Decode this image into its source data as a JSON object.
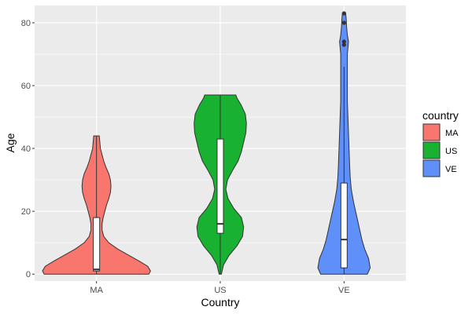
{
  "chart_data": {
    "type": "violin",
    "xlabel": "Country",
    "ylabel": "Age",
    "ylim": [
      -2.2,
      85.5
    ],
    "yticks": [
      0,
      20,
      40,
      60,
      80
    ],
    "categories": [
      "MA",
      "US",
      "VE"
    ],
    "legend": {
      "title": "country",
      "position": "right"
    },
    "grid": true,
    "colors": {
      "MA": "#f8766d",
      "US": "#19b131",
      "VE": "#5f8ff9"
    },
    "series": [
      {
        "name": "MA",
        "min": 0,
        "max": 44,
        "box": {
          "q1": 1,
          "median": 1.5,
          "q3": 18,
          "whisker_low": 0,
          "whisker_high": 44
        },
        "outliers": [],
        "density": [
          [
            0,
            0.94
          ],
          [
            1,
            0.97
          ],
          [
            2.5,
            0.92
          ],
          [
            4,
            0.78
          ],
          [
            6,
            0.58
          ],
          [
            8,
            0.38
          ],
          [
            10,
            0.22
          ],
          [
            12,
            0.13
          ],
          [
            14,
            0.1
          ],
          [
            16,
            0.1
          ],
          [
            18,
            0.12
          ],
          [
            20,
            0.15
          ],
          [
            22,
            0.18
          ],
          [
            24,
            0.22
          ],
          [
            26,
            0.25
          ],
          [
            28,
            0.26
          ],
          [
            30,
            0.25
          ],
          [
            32,
            0.22
          ],
          [
            34,
            0.17
          ],
          [
            36,
            0.13
          ],
          [
            38,
            0.1
          ],
          [
            40,
            0.07
          ],
          [
            42,
            0.06
          ],
          [
            44,
            0.05
          ]
        ]
      },
      {
        "name": "US",
        "min": 0,
        "max": 57,
        "box": {
          "q1": 13,
          "median": 16,
          "q3": 43,
          "whisker_low": 0,
          "whisker_high": 57
        },
        "outliers": [],
        "density": [
          [
            0,
            0.02
          ],
          [
            3,
            0.06
          ],
          [
            6,
            0.16
          ],
          [
            9,
            0.3
          ],
          [
            12,
            0.4
          ],
          [
            15,
            0.42
          ],
          [
            18,
            0.38
          ],
          [
            21,
            0.24
          ],
          [
            24,
            0.14
          ],
          [
            27,
            0.1
          ],
          [
            30,
            0.13
          ],
          [
            33,
            0.22
          ],
          [
            36,
            0.32
          ],
          [
            39,
            0.38
          ],
          [
            42,
            0.42
          ],
          [
            45,
            0.46
          ],
          [
            48,
            0.47
          ],
          [
            51,
            0.45
          ],
          [
            54,
            0.37
          ],
          [
            56,
            0.3
          ],
          [
            57,
            0.28
          ]
        ]
      },
      {
        "name": "VE",
        "min": 0,
        "max": 83,
        "box": {
          "q1": 2,
          "median": 11,
          "q3": 29,
          "whisker_low": 0,
          "whisker_high": 66
        },
        "outliers": [
          73,
          74,
          80,
          83
        ],
        "density": [
          [
            0,
            0.42
          ],
          [
            2,
            0.47
          ],
          [
            5,
            0.44
          ],
          [
            8,
            0.37
          ],
          [
            11,
            0.32
          ],
          [
            15,
            0.27
          ],
          [
            19,
            0.22
          ],
          [
            23,
            0.17
          ],
          [
            27,
            0.13
          ],
          [
            31,
            0.11
          ],
          [
            35,
            0.1
          ],
          [
            40,
            0.09
          ],
          [
            45,
            0.08
          ],
          [
            50,
            0.07
          ],
          [
            55,
            0.06
          ],
          [
            60,
            0.06
          ],
          [
            65,
            0.06
          ],
          [
            70,
            0.06
          ],
          [
            72,
            0.07
          ],
          [
            74,
            0.08
          ],
          [
            76,
            0.06
          ],
          [
            79,
            0.045
          ],
          [
            81,
            0.04
          ],
          [
            83,
            0.03
          ]
        ]
      }
    ]
  }
}
